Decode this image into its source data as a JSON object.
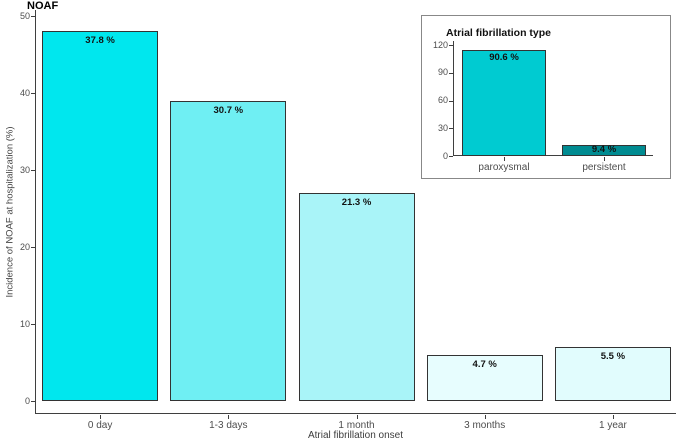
{
  "figure": {
    "background": "#ffffff"
  },
  "chart_data": [
    {
      "name": "main",
      "type": "bar",
      "title": "NOAF",
      "xlabel": "Atrial fibrillation onset",
      "ylabel": "Incidence of NOAF at hospitalization (%)",
      "categories": [
        "0 day",
        "1-3 days",
        "1 month",
        "3 months",
        "1 year"
      ],
      "values": [
        48,
        39,
        27,
        6,
        7
      ],
      "bar_labels": [
        "37.8 %",
        "30.7 %",
        "21.3 %",
        "4.7 %",
        "5.5 %"
      ],
      "bar_colors": [
        "#00E7EE",
        "#6FEFF3",
        "#A9F4F8",
        "#E7FDFE",
        "#E1FCFD"
      ],
      "bar_border_color": "#333333",
      "ylim": [
        0,
        50
      ],
      "yticks": [
        0,
        10,
        20,
        30,
        40,
        50
      ],
      "grid": false,
      "legend": "none",
      "axis_color": "#3f3f3f",
      "tick_label_color": "#4d4d4d",
      "value_label_color": "#111111"
    },
    {
      "name": "inset",
      "type": "bar",
      "title": "Atrial fibrillation type",
      "xlabel": "",
      "ylabel": "",
      "categories": [
        "paroxysmal",
        "persistent"
      ],
      "values": [
        115,
        12
      ],
      "bar_labels": [
        "90.6 %",
        "9.4 %"
      ],
      "bar_colors": [
        "#00CBD1",
        "#008B91"
      ],
      "bar_border_color": "#333333",
      "ylim": [
        0,
        120
      ],
      "yticks": [
        0,
        30,
        60,
        90,
        120
      ],
      "grid": false,
      "legend": "none",
      "box_border_color": "#888888",
      "axis_color": "#3f3f3f",
      "tick_label_color": "#4d4d4d",
      "value_label_color": "#111111"
    }
  ]
}
